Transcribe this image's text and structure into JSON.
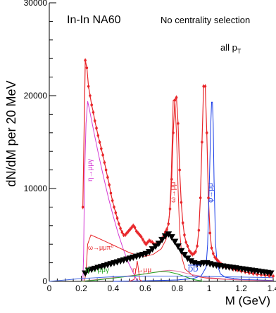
{
  "chart_data": {
    "type": "line",
    "title": "",
    "xlabel": "M (GeV)",
    "ylabel": "dN/dM per 20 MeV",
    "xlim": [
      0,
      1.4
    ],
    "ylim": [
      0,
      30000
    ],
    "x_ticks": [
      "0",
      "0.2",
      "0.4",
      "0.6",
      "0.8",
      "1",
      "1.2",
      "1.4"
    ],
    "y_ticks": [
      "0",
      "10000",
      "20000",
      "30000"
    ],
    "x_tick_values": [
      0,
      0.2,
      0.4,
      0.6,
      0.8,
      1.0,
      1.2,
      1.4
    ],
    "y_tick_values": [
      0,
      10000,
      20000,
      30000
    ],
    "annotations": {
      "experiment": "In-In  NA60",
      "centrality": "No centrality selection",
      "pt": "all p",
      "pt_sub": "T"
    },
    "series": [
      {
        "name": "",
        "style": "data-red-points",
        "color": "#e8262a",
        "x": [
          0.21,
          0.225,
          0.235,
          0.245,
          0.255,
          0.265,
          0.275,
          0.285,
          0.295,
          0.305,
          0.315,
          0.325,
          0.335,
          0.345,
          0.355,
          0.365,
          0.375,
          0.385,
          0.395,
          0.405,
          0.415,
          0.425,
          0.435,
          0.445,
          0.455,
          0.465,
          0.475,
          0.485,
          0.495,
          0.505,
          0.515,
          0.525,
          0.535,
          0.545,
          0.555,
          0.565,
          0.575,
          0.585,
          0.595,
          0.605,
          0.615,
          0.625,
          0.635,
          0.645,
          0.655,
          0.665,
          0.675,
          0.685,
          0.695,
          0.705,
          0.715,
          0.725,
          0.735,
          0.745,
          0.755,
          0.765,
          0.775,
          0.785,
          0.795,
          0.805,
          0.815,
          0.825,
          0.835,
          0.845,
          0.855,
          0.865,
          0.875,
          0.885,
          0.895,
          0.905,
          0.915,
          0.925,
          0.935,
          0.945,
          0.955,
          0.965,
          0.975,
          0.985,
          0.995,
          1.005,
          1.015,
          1.025,
          1.035,
          1.045,
          1.055,
          1.065,
          1.075,
          1.085,
          1.095,
          1.105,
          1.125,
          1.15,
          1.175,
          1.2,
          1.225,
          1.25,
          1.275,
          1.3,
          1.325,
          1.35,
          1.375,
          1.4
        ],
        "y": [
          8000,
          23800,
          23000,
          21000,
          20000,
          19000,
          18200,
          17300,
          16500,
          15700,
          15000,
          14300,
          13600,
          12800,
          12000,
          11200,
          10400,
          9500,
          8700,
          8000,
          7400,
          6800,
          6200,
          5700,
          5300,
          5000,
          5000,
          5200,
          5400,
          5600,
          5800,
          6000,
          5800,
          5400,
          5200,
          5000,
          4800,
          4500,
          4200,
          4000,
          4200,
          4400,
          4300,
          4200,
          4000,
          4000,
          4000,
          4100,
          4300,
          4600,
          4900,
          5300,
          5600,
          6200,
          7800,
          11000,
          16000,
          19500,
          19800,
          17000,
          12000,
          8500,
          6300,
          5000,
          4200,
          3800,
          3300,
          3100,
          2900,
          3000,
          3200,
          3800,
          5500,
          9000,
          15000,
          21000,
          21000,
          16000,
          9000,
          5200,
          3600,
          3000,
          2600,
          2400,
          2200,
          2000,
          1850,
          1750,
          1650,
          1550,
          1400,
          1300,
          1200,
          1100,
          1000,
          900,
          820,
          760,
          700,
          650,
          600,
          560
        ]
      },
      {
        "name": "",
        "style": "excess-black-triangles",
        "color": "#000000",
        "x": [
          0.225,
          0.245,
          0.265,
          0.285,
          0.305,
          0.325,
          0.345,
          0.365,
          0.385,
          0.405,
          0.425,
          0.445,
          0.465,
          0.485,
          0.505,
          0.525,
          0.545,
          0.565,
          0.585,
          0.605,
          0.625,
          0.645,
          0.665,
          0.685,
          0.705,
          0.725,
          0.745,
          0.765,
          0.785,
          0.805,
          0.825,
          0.845,
          0.865,
          0.885,
          0.905,
          0.925,
          0.945,
          0.965,
          0.985,
          1.005,
          1.025,
          1.045,
          1.065,
          1.085,
          1.105,
          1.125,
          1.145,
          1.165,
          1.185,
          1.205,
          1.225,
          1.245,
          1.265,
          1.285,
          1.305,
          1.325,
          1.345,
          1.365,
          1.385
        ],
        "y": [
          800,
          1100,
          1200,
          1300,
          1400,
          1500,
          1600,
          1700,
          1800,
          1900,
          2000,
          2100,
          2200,
          2300,
          2400,
          2500,
          2600,
          2700,
          2800,
          2900,
          3100,
          3400,
          3700,
          4000,
          4400,
          4800,
          5000,
          4700,
          4200,
          3700,
          3200,
          2800,
          2400,
          2100,
          1900,
          1800,
          1800,
          1900,
          1900,
          1800,
          1700,
          1650,
          1600,
          1550,
          1500,
          1450,
          1400,
          1350,
          1300,
          1250,
          1200,
          1150,
          1100,
          1050,
          1000,
          950,
          900,
          850,
          800
        ]
      },
      {
        "name": "",
        "label": "η→μμγ-magenta",
        "color": "#d43ad4",
        "x": [
          0.2,
          0.21,
          0.215,
          0.22,
          0.23,
          0.24,
          0.25,
          0.28,
          0.31,
          0.34,
          0.37,
          0.4,
          0.43,
          0.46,
          0.49,
          0.52,
          0.54,
          0.55
        ],
        "y": [
          0,
          0,
          3000,
          11000,
          17000,
          19400,
          18600,
          16000,
          13500,
          11200,
          9000,
          7000,
          5200,
          3600,
          2200,
          1100,
          400,
          0
        ]
      },
      {
        "name": "",
        "label": "ω-red",
        "color": "#e8262a",
        "x": [
          0.2,
          0.22,
          0.23,
          0.24,
          0.26,
          0.3,
          0.35,
          0.4,
          0.45,
          0.5,
          0.55,
          0.6,
          0.65,
          0.7,
          0.73,
          0.75,
          0.76,
          0.77,
          0.775,
          0.785,
          0.795,
          0.805,
          0.815,
          0.83,
          0.85,
          0.9,
          1.0,
          1.2,
          1.4
        ],
        "y": [
          0,
          0,
          1000,
          4000,
          5000,
          4700,
          4300,
          3900,
          3500,
          3100,
          2800,
          2700,
          2900,
          3500,
          4500,
          7000,
          10000,
          16000,
          19500,
          19600,
          16000,
          10000,
          5500,
          2500,
          1300,
          600,
          300,
          150,
          80
        ]
      },
      {
        "name": "",
        "label": "φ-blue",
        "color": "#1a3ee8",
        "x": [
          0.4,
          0.6,
          0.8,
          0.9,
          0.95,
          0.98,
          0.99,
          1.0,
          1.01,
          1.015,
          1.02,
          1.025,
          1.03,
          1.04,
          1.05,
          1.07,
          1.1,
          1.2,
          1.4
        ],
        "y": [
          0,
          50,
          150,
          300,
          600,
          1500,
          4000,
          10000,
          17000,
          19300,
          19300,
          17000,
          11000,
          4000,
          1800,
          800,
          450,
          200,
          100
        ]
      },
      {
        "name": "",
        "label": "ρ-pink",
        "color": "#e0709a",
        "x": [
          0.2,
          0.3,
          0.4,
          0.5,
          0.6,
          0.7,
          0.75,
          0.8,
          0.9,
          1.0,
          1.1,
          1.2,
          1.3,
          1.4
        ],
        "y": [
          0,
          200,
          400,
          600,
          800,
          1100,
          1200,
          1100,
          700,
          400,
          250,
          150,
          100,
          60
        ]
      },
      {
        "name": "",
        "label": "η→μμ-red",
        "color": "#e8262a",
        "x": [
          0.5,
          0.53,
          0.545,
          0.55,
          0.555,
          0.565,
          0.58
        ],
        "y": [
          0,
          200,
          1600,
          2200,
          1600,
          200,
          0
        ]
      },
      {
        "name": "",
        "label": "η'-green",
        "color": "#26a826",
        "x": [
          0.2,
          0.3,
          0.4,
          0.5,
          0.6,
          0.65,
          0.7,
          0.75,
          0.8,
          0.85,
          0.9,
          0.95,
          0.96
        ],
        "y": [
          0,
          150,
          350,
          550,
          800,
          950,
          1050,
          1000,
          800,
          500,
          200,
          50,
          0
        ]
      },
      {
        "name": "",
        "label": "DD-blue",
        "color": "#4a6ee8",
        "x": [
          0,
          0.2,
          0.4,
          0.6,
          0.8,
          1.0,
          1.2,
          1.4
        ],
        "y": [
          0,
          300,
          500,
          560,
          560,
          520,
          460,
          400
        ]
      }
    ],
    "curve_labels": [
      {
        "text": "η→μμγ",
        "color": "#d43ad4"
      },
      {
        "text": "ω→μμ",
        "color": "#e8262a"
      },
      {
        "text": "φ→μμ",
        "color": "#1a3ee8"
      },
      {
        "text": "ω→μμπ⁰",
        "color": "#e8262a"
      },
      {
        "text": "η'→μμγ",
        "color": "#26a826"
      },
      {
        "text": "η→μμ",
        "color": "#e8262a"
      },
      {
        "text": "DD",
        "color": "#1a3ee8"
      }
    ],
    "grid": false,
    "legend": "none"
  }
}
